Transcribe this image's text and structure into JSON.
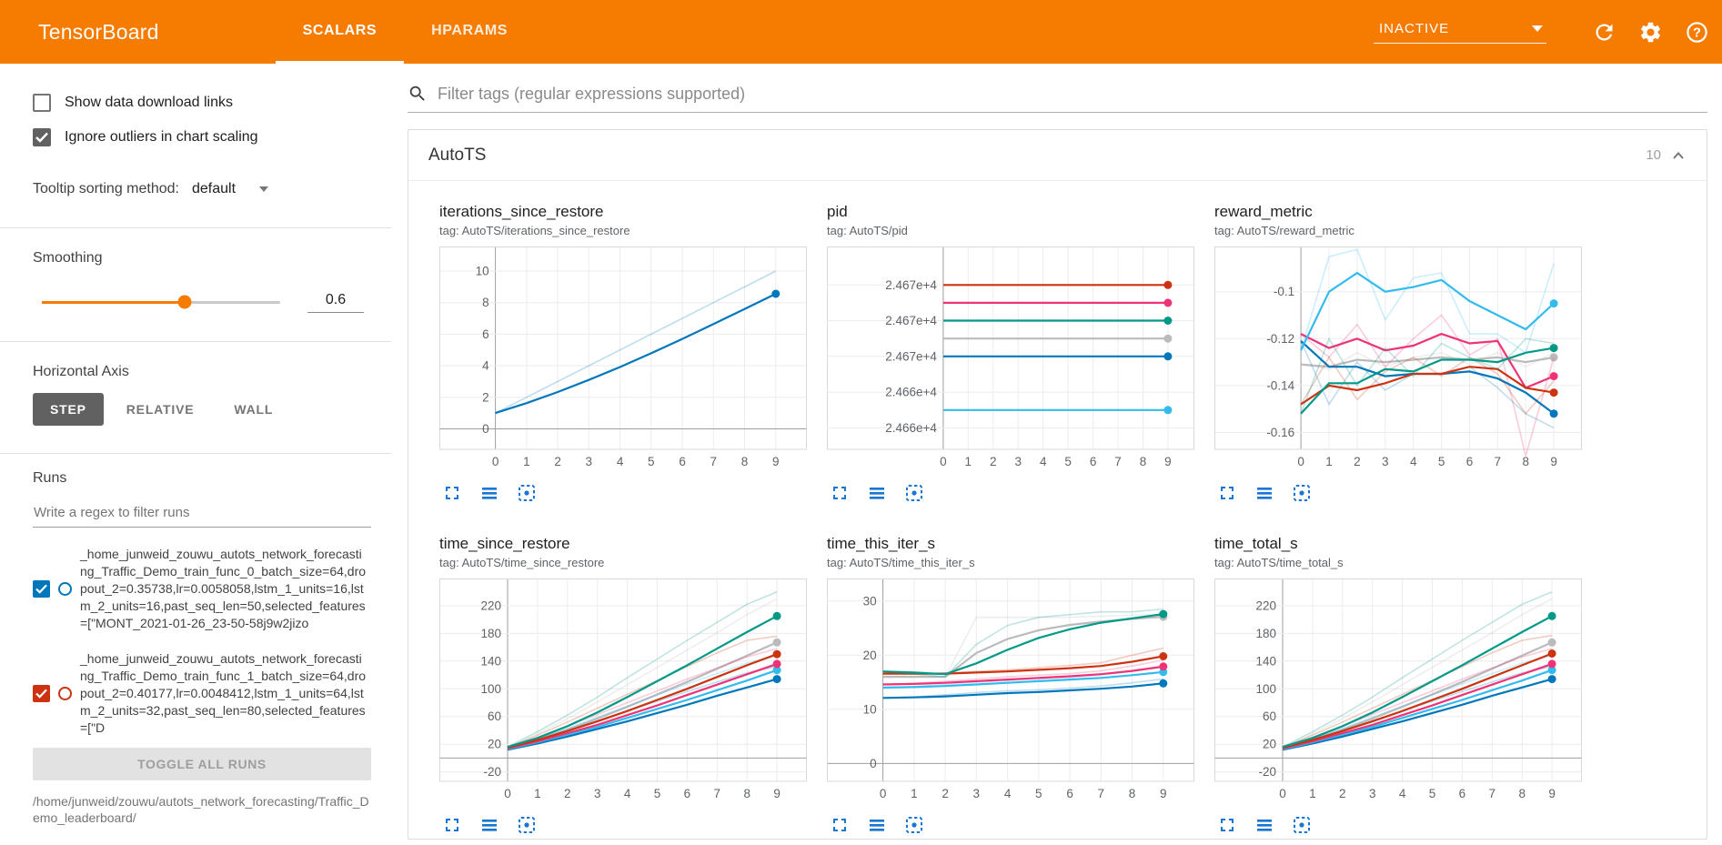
{
  "header": {
    "logo": "TensorBoard",
    "tabs": [
      {
        "label": "SCALARS"
      },
      {
        "label": "HPARAMS"
      }
    ],
    "active_tab": "SCALARS",
    "status": {
      "label": "INACTIVE"
    }
  },
  "sidebar": {
    "checkboxes": [
      {
        "label": "Show data download links",
        "checked": false
      },
      {
        "label": "Ignore outliers in chart scaling",
        "checked": true
      }
    ],
    "tooltip_sorting": {
      "label": "Tooltip sorting method:",
      "value": "default"
    },
    "smoothing": {
      "label": "Smoothing",
      "value": "0.6"
    },
    "horizontal_axis": {
      "label": "Horizontal Axis",
      "options": [
        "STEP",
        "RELATIVE",
        "WALL"
      ],
      "selected": "STEP"
    },
    "runs": {
      "label": "Runs",
      "filter_placeholder": "Write a regex to filter runs",
      "items": [
        {
          "name": "_home_junweid_zouwu_autots_network_forecasting_Traffic_Demo_train_func_0_batch_size=64,dropout_2=0.35738,lr=0.0058058,lstm_1_units=16,lstm_2_units=16,past_seq_len=50,selected_features=[\"MONT_2021-01-26_23-50-58j9w2jizo",
          "color": "#0077bb",
          "checked": true
        },
        {
          "name": "_home_junweid_zouwu_autots_network_forecasting_Traffic_Demo_train_func_1_batch_size=64,dropout_2=0.40177,lr=0.0048412,lstm_1_units=64,lstm_2_units=32,past_seq_len=80,selected_features=[\"D",
          "color": "#cc3311",
          "checked": true
        }
      ],
      "toggle_all": "TOGGLE ALL RUNS",
      "base_path": "/home/junweid/zouwu/autots_network_forecasting/Traffic_Demo_leaderboard/"
    }
  },
  "main": {
    "filter_placeholder": "Filter tags (regular expressions supported)",
    "group": {
      "title": "AutoTS",
      "count": "10"
    }
  },
  "colors": {
    "header_bg": "#f57c00",
    "chart_icon_blue": "#1976d2",
    "run_palette": {
      "blue": "#0077bb",
      "cyan": "#33bbee",
      "teal": "#009988",
      "red": "#cc3311",
      "magenta": "#ee3377",
      "grey": "#bbbbbb"
    }
  },
  "chart_data": [
    {
      "id": "iterations_since_restore",
      "title": "iterations_since_restore",
      "tag": "tag: AutoTS/iterations_since_restore",
      "type": "line",
      "x": [
        0,
        1,
        2,
        3,
        4,
        5,
        6,
        7,
        8,
        9
      ],
      "xticks": [
        0,
        1,
        2,
        3,
        4,
        5,
        6,
        7,
        8,
        9
      ],
      "xlim": [
        -1.8,
        10
      ],
      "ylim": [
        -1.3,
        11.5
      ],
      "yticks": [
        0,
        2,
        4,
        6,
        8,
        10
      ],
      "series": [
        {
          "name": "blue",
          "color": "#0077bb",
          "raw": [
            1,
            2,
            3,
            4,
            5,
            6,
            7,
            8,
            9,
            10
          ],
          "y": [
            1,
            1.63,
            2.33,
            3.1,
            3.92,
            4.79,
            5.7,
            6.64,
            7.59,
            8.56
          ]
        }
      ]
    },
    {
      "id": "pid",
      "title": "pid",
      "tag": "tag: AutoTS/pid",
      "type": "line",
      "x": [
        0,
        1,
        2,
        3,
        4,
        5,
        6,
        7,
        8,
        9
      ],
      "xticks": [
        0,
        1,
        2,
        3,
        4,
        5,
        6,
        7,
        8,
        9
      ],
      "xlim": [
        -4.66,
        10.06
      ],
      "ylim": [
        24660.8,
        24672.1
      ],
      "yticks": [
        24670,
        24668,
        24666,
        24664,
        24662
      ],
      "ytick_labels": [
        "2.467e+4",
        "2.467e+4",
        "2.467e+4",
        "2.466e+4",
        "2.466e+4"
      ],
      "series": [
        {
          "name": "red",
          "color": "#cc3311",
          "value": 24670
        },
        {
          "name": "magenta",
          "color": "#ee3377",
          "value": 24669
        },
        {
          "name": "teal",
          "color": "#009988",
          "value": 24668
        },
        {
          "name": "grey",
          "color": "#bbbbbb",
          "value": 24667
        },
        {
          "name": "blue",
          "color": "#0077bb",
          "value": 24666
        },
        {
          "name": "cyan",
          "color": "#33bbee",
          "value": 24663
        }
      ]
    },
    {
      "id": "reward_metric",
      "title": "reward_metric",
      "tag": "tag: AutoTS/reward_metric",
      "type": "line",
      "x": [
        0,
        1,
        2,
        3,
        4,
        5,
        6,
        7,
        8,
        9
      ],
      "xticks": [
        0,
        1,
        2,
        3,
        4,
        5,
        6,
        7,
        8,
        9
      ],
      "xlim": [
        -3.08,
        10
      ],
      "ylim": [
        -0.1672,
        -0.0811
      ],
      "yticks": [
        -0.1,
        -0.12,
        -0.14,
        -0.16
      ],
      "series": [
        {
          "name": "grey",
          "color": "#bbbbbb",
          "raw": [
            -0.131,
            -0.133,
            -0.126,
            -0.132,
            -0.128,
            -0.126,
            -0.131,
            -0.126,
            -0.132,
            -0.126
          ],
          "y": [
            -0.131,
            -0.132,
            -0.129,
            -0.13,
            -0.129,
            -0.128,
            -0.129,
            -0.128,
            -0.13,
            -0.128
          ]
        },
        {
          "name": "magenta",
          "color": "#ee3377",
          "raw": [
            -0.118,
            -0.128,
            -0.114,
            -0.132,
            -0.12,
            -0.11,
            -0.127,
            -0.12,
            -0.17,
            -0.128
          ],
          "y": [
            -0.118,
            -0.124,
            -0.12,
            -0.125,
            -0.123,
            -0.118,
            -0.122,
            -0.121,
            -0.141,
            -0.136
          ]
        },
        {
          "name": "blue",
          "color": "#0077bb",
          "raw": [
            -0.121,
            -0.148,
            -0.13,
            -0.142,
            -0.135,
            -0.135,
            -0.132,
            -0.141,
            -0.152,
            -0.158
          ],
          "y": [
            -0.121,
            -0.132,
            -0.132,
            -0.136,
            -0.135,
            -0.135,
            -0.134,
            -0.137,
            -0.143,
            -0.152
          ]
        },
        {
          "name": "red",
          "color": "#cc3311",
          "raw": [
            -0.148,
            -0.128,
            -0.146,
            -0.134,
            -0.128,
            -0.136,
            -0.128,
            -0.135,
            -0.152,
            -0.138
          ],
          "y": [
            -0.148,
            -0.14,
            -0.142,
            -0.139,
            -0.135,
            -0.135,
            -0.132,
            -0.133,
            -0.141,
            -0.143
          ]
        },
        {
          "name": "teal",
          "color": "#009988",
          "raw": [
            -0.152,
            -0.12,
            -0.14,
            -0.124,
            -0.136,
            -0.122,
            -0.128,
            -0.133,
            -0.12,
            -0.122
          ],
          "y": [
            -0.152,
            -0.139,
            -0.139,
            -0.133,
            -0.134,
            -0.129,
            -0.129,
            -0.13,
            -0.126,
            -0.124
          ]
        },
        {
          "name": "cyan",
          "color": "#33bbee",
          "raw": [
            -0.125,
            -0.085,
            -0.082,
            -0.112,
            -0.094,
            -0.092,
            -0.118,
            -0.118,
            -0.126,
            -0.088
          ],
          "y": [
            -0.125,
            -0.1,
            -0.092,
            -0.1,
            -0.098,
            -0.095,
            -0.104,
            -0.11,
            -0.116,
            -0.105
          ]
        }
      ]
    },
    {
      "id": "time_since_restore",
      "title": "time_since_restore",
      "tag": "tag: AutoTS/time_since_restore",
      "type": "line",
      "x": [
        0,
        1,
        2,
        3,
        4,
        5,
        6,
        7,
        8,
        9
      ],
      "xticks": [
        0,
        1,
        2,
        3,
        4,
        5,
        6,
        7,
        8,
        9
      ],
      "xlim": [
        -2.28,
        10
      ],
      "ylim": [
        -33.6,
        258
      ],
      "yticks": [
        -20,
        20,
        60,
        100,
        140,
        180,
        220
      ],
      "series": [
        {
          "name": "grey",
          "color": "#bbbbbb",
          "raw": [
            15,
            35,
            57,
            81,
            106,
            131,
            156,
            181,
            207,
            230
          ],
          "y": [
            15,
            27,
            41,
            57,
            74,
            92,
            110,
            129,
            148,
            167
          ]
        },
        {
          "name": "blue",
          "color": "#0077bb",
          "raw": [
            12,
            26,
            40,
            54,
            68,
            82,
            96,
            110,
            123,
            132
          ],
          "y": [
            12,
            21,
            31,
            42,
            53,
            65,
            77,
            90,
            102,
            114
          ]
        },
        {
          "name": "cyan",
          "color": "#33bbee",
          "raw": [
            13,
            28,
            43,
            59,
            75,
            91,
            107,
            122,
            137,
            148
          ],
          "y": [
            13,
            23,
            34,
            45,
            58,
            71,
            84,
            98,
            112,
            127
          ]
        },
        {
          "name": "magenta",
          "color": "#ee3377",
          "raw": [
            14,
            30,
            46,
            63,
            80,
            97,
            114,
            130,
            146,
            158
          ],
          "y": [
            14,
            24,
            36,
            48,
            62,
            76,
            91,
            106,
            121,
            136
          ]
        },
        {
          "name": "red",
          "color": "#cc3311",
          "raw": [
            15,
            33,
            52,
            72,
            92,
            112,
            132,
            152,
            170,
            176
          ],
          "y": [
            15,
            26,
            39,
            53,
            68,
            84,
            100,
            117,
            134,
            150
          ]
        },
        {
          "name": "teal",
          "color": "#009988",
          "raw": [
            16,
            38,
            62,
            88,
            116,
            143,
            170,
            196,
            222,
            240
          ],
          "y": [
            16,
            29,
            46,
            66,
            88,
            111,
            134,
            158,
            182,
            205
          ]
        }
      ]
    },
    {
      "id": "time_this_iter_s",
      "title": "time_this_iter_s",
      "tag": "tag: AutoTS/time_this_iter_s",
      "type": "line",
      "x": [
        0,
        1,
        2,
        3,
        4,
        5,
        6,
        7,
        8,
        9
      ],
      "xticks": [
        0,
        1,
        2,
        3,
        4,
        5,
        6,
        7,
        8,
        9
      ],
      "xlim": [
        -1.8,
        10
      ],
      "ylim": [
        -3.3,
        34
      ],
      "yticks": [
        0,
        10,
        20,
        30
      ],
      "series": [
        {
          "name": "grey",
          "color": "#bbbbbb",
          "raw": [
            16,
            16,
            16,
            27,
            27,
            27,
            27,
            27.2,
            27.4,
            27.6
          ],
          "y": [
            16,
            16,
            16,
            20.4,
            23,
            24.6,
            25.6,
            26.2,
            26.7,
            27.1
          ]
        },
        {
          "name": "blue",
          "color": "#0077bb",
          "raw": [
            12.1,
            12.3,
            12.7,
            13.1,
            13.4,
            13.6,
            13.9,
            14.3,
            14.9,
            15.6
          ],
          "y": [
            12.1,
            12.2,
            12.4,
            12.7,
            13,
            13.2,
            13.5,
            13.8,
            14.2,
            14.8
          ]
        },
        {
          "name": "cyan",
          "color": "#33bbee",
          "raw": [
            14,
            14.2,
            14.6,
            15,
            15.3,
            15.6,
            15.9,
            16.3,
            17,
            17.8
          ],
          "y": [
            14,
            14.1,
            14.3,
            14.6,
            14.9,
            15.2,
            15.5,
            15.8,
            16.3,
            16.9
          ]
        },
        {
          "name": "magenta",
          "color": "#ee3377",
          "raw": [
            14.6,
            14.8,
            15.2,
            15.6,
            16,
            16.3,
            16.6,
            17.1,
            18,
            19.1
          ],
          "y": [
            14.6,
            14.7,
            14.9,
            15.2,
            15.5,
            15.8,
            16.1,
            16.5,
            17.1,
            17.9
          ]
        },
        {
          "name": "red",
          "color": "#cc3311",
          "raw": [
            16.6,
            16.6,
            16.7,
            17,
            17.3,
            17.7,
            18.1,
            18.6,
            20,
            21.3
          ],
          "y": [
            16.6,
            16.6,
            16.6,
            16.8,
            17,
            17.3,
            17.6,
            18,
            18.8,
            19.8
          ]
        },
        {
          "name": "teal",
          "color": "#009988",
          "raw": [
            17,
            16.5,
            16,
            22,
            25.5,
            27,
            27.5,
            28,
            28,
            28.5
          ],
          "y": [
            17,
            16.8,
            16.5,
            18.5,
            21,
            23.2,
            24.8,
            26,
            26.8,
            27.6
          ]
        }
      ]
    },
    {
      "id": "time_total_s",
      "title": "time_total_s",
      "tag": "tag: AutoTS/time_total_s",
      "type": "line",
      "x": [
        0,
        1,
        2,
        3,
        4,
        5,
        6,
        7,
        8,
        9
      ],
      "xticks": [
        0,
        1,
        2,
        3,
        4,
        5,
        6,
        7,
        8,
        9
      ],
      "xlim": [
        -2.28,
        10
      ],
      "ylim": [
        -33.6,
        258
      ],
      "yticks": [
        -20,
        20,
        60,
        100,
        140,
        180,
        220
      ],
      "series": [
        {
          "name": "grey",
          "color": "#bbbbbb",
          "raw": [
            15,
            35,
            57,
            81,
            106,
            131,
            156,
            181,
            207,
            230
          ],
          "y": [
            15,
            27,
            41,
            57,
            74,
            92,
            110,
            129,
            148,
            167
          ]
        },
        {
          "name": "blue",
          "color": "#0077bb",
          "raw": [
            12,
            26,
            40,
            54,
            68,
            82,
            96,
            110,
            123,
            132
          ],
          "y": [
            12,
            21,
            31,
            42,
            53,
            65,
            77,
            90,
            102,
            114
          ]
        },
        {
          "name": "cyan",
          "color": "#33bbee",
          "raw": [
            13,
            28,
            43,
            59,
            75,
            91,
            107,
            122,
            137,
            148
          ],
          "y": [
            13,
            23,
            34,
            45,
            58,
            71,
            84,
            98,
            112,
            127
          ]
        },
        {
          "name": "magenta",
          "color": "#ee3377",
          "raw": [
            14,
            30,
            46,
            63,
            80,
            97,
            114,
            130,
            146,
            158
          ],
          "y": [
            14,
            24,
            36,
            48,
            62,
            76,
            91,
            106,
            121,
            136
          ]
        },
        {
          "name": "red",
          "color": "#cc3311",
          "raw": [
            15,
            33,
            52,
            72,
            92,
            112,
            132,
            152,
            170,
            177
          ],
          "y": [
            15,
            26,
            39,
            53,
            68,
            84,
            100,
            117,
            134,
            151
          ]
        },
        {
          "name": "teal",
          "color": "#009988",
          "raw": [
            16,
            38,
            62,
            88,
            116,
            143,
            170,
            196,
            222,
            240
          ],
          "y": [
            16,
            29,
            46,
            66,
            88,
            111,
            134,
            158,
            182,
            205
          ]
        }
      ]
    }
  ]
}
